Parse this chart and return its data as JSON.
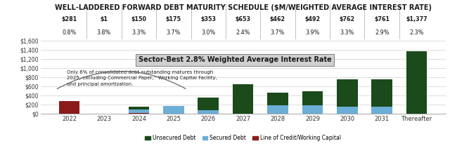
{
  "title": "WELL-LADDERED FORWARD DEBT MATURITY SCHEDULE ($M/WEIGHTED AVERAGE INTEREST RATE)",
  "categories": [
    "2022",
    "2023",
    "2024",
    "2025",
    "2026",
    "2027",
    "2028",
    "2029",
    "2030",
    "2031",
    "Thereafter"
  ],
  "totals": [
    "$281",
    "$1",
    "$150",
    "$175",
    "$353",
    "$653",
    "$462",
    "$492",
    "$762",
    "$761",
    "$1,377"
  ],
  "rates": [
    "0.8%",
    "3.8%",
    "3.3%",
    "3.7%",
    "3.0%",
    "2.4%",
    "3.7%",
    "3.9%",
    "3.3%",
    "2.9%",
    "2.3%"
  ],
  "unsecured": [
    0,
    0,
    50,
    0,
    275,
    653,
    275,
    300,
    600,
    600,
    1377
  ],
  "secured": [
    0,
    0,
    75,
    175,
    78,
    0,
    187,
    192,
    162,
    161,
    0
  ],
  "loc": [
    281,
    1,
    25,
    0,
    0,
    0,
    0,
    0,
    0,
    0,
    0
  ],
  "colors": {
    "unsecured": "#1b4a1b",
    "secured": "#6baed6",
    "loc": "#8b1a1a",
    "background": "#ffffff",
    "grid_color": "#d0d0d0",
    "title_color": "#1a1a1a",
    "divider": "#aaaaaa",
    "ann_box_face": "#d0d0d0",
    "ann_box_edge": "#888888",
    "ann_arc": "#666666"
  },
  "ylim": [
    0,
    1600
  ],
  "yticks": [
    0,
    200,
    400,
    600,
    800,
    1000,
    1200,
    1400,
    1600
  ],
  "ytick_labels": [
    "$0",
    "$200",
    "$400",
    "$600",
    "$800",
    "$1,000",
    "$1,200",
    "$1,400",
    "$1,600"
  ],
  "annotation_main": "Sector-Best 2.8% Weighted Average Interest Rate",
  "annotation_note": "Only 6% of consolidated debt outstanding matures through\n2025, excluding Commercial Paper,⁻ Working Capital Facility,\nand principal amortization.",
  "legend_labels": [
    "Unsecured Debt",
    "Secured Debt",
    "Line of Credit/Working Capital"
  ],
  "bar_width": 0.6,
  "title_fontsize": 7.0,
  "tick_fontsize": 6.5,
  "label_fontsize": 5.8,
  "note_fontsize": 5.0,
  "ann_fontsize": 7.0
}
